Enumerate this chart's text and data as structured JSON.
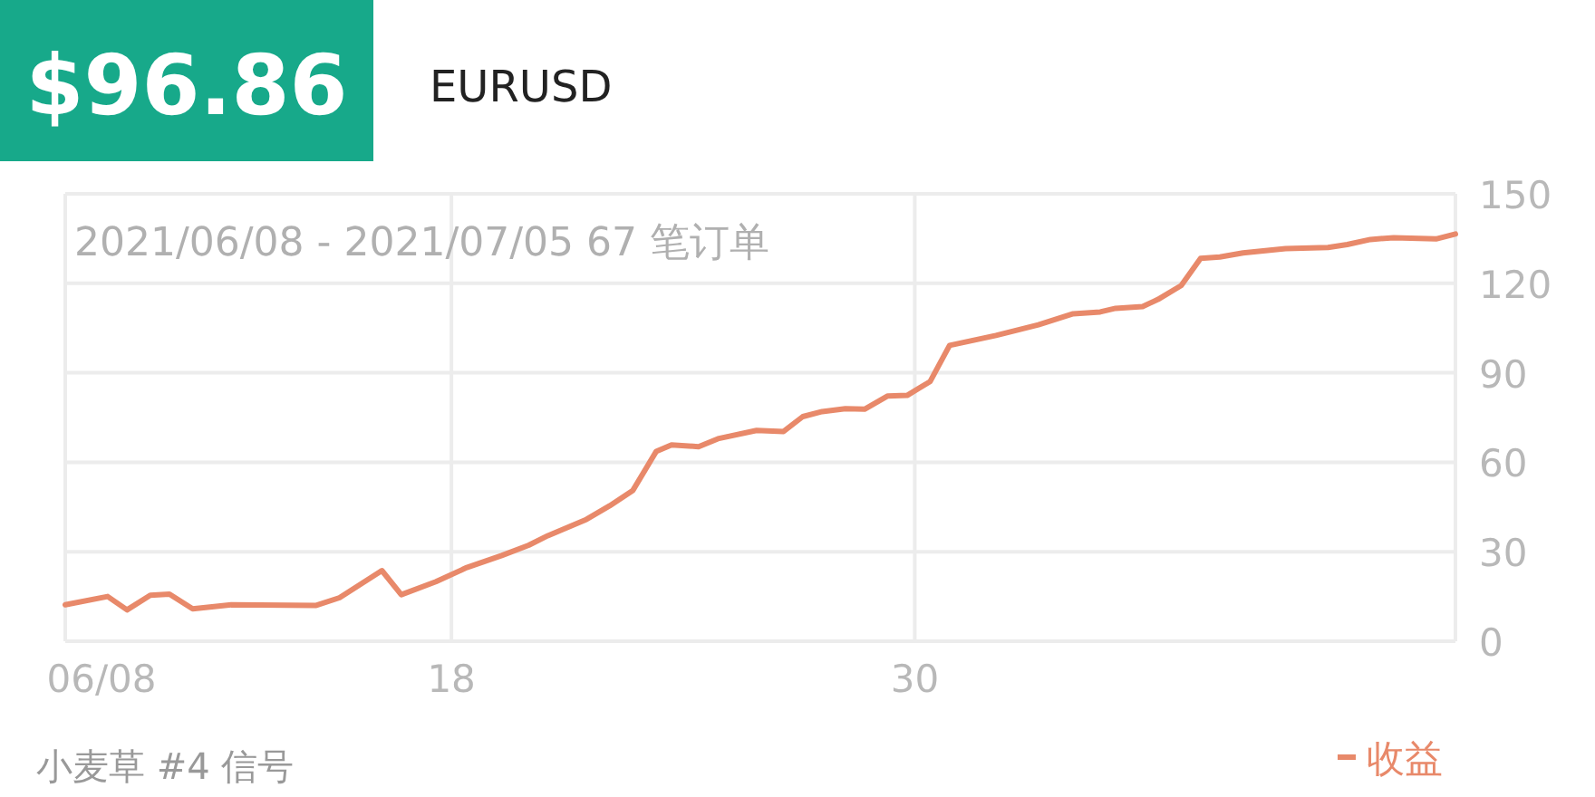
{
  "chart_data": {
    "type": "line",
    "title": "$96.86",
    "subtitle": "EURUSD",
    "annotations": [
      "2021/06/08 - 2021/07/05 67 笔订单",
      "小麦草 #4 信号"
    ],
    "x": [
      "2021-06-08T00:00",
      "2021-06-09T02:24",
      "2021-06-09T14:24",
      "2021-06-10T04:48",
      "2021-06-10T16:48",
      "2021-06-11T07:12",
      "2021-06-12T07:12",
      "2021-06-14T12:00",
      "2021-06-15T02:24",
      "2021-06-16T04:48",
      "2021-06-16T16:48",
      "2021-06-17T14:24",
      "2021-06-18T09:36",
      "2021-06-19T07:12",
      "2021-06-20T00:00",
      "2021-06-20T12:00",
      "2021-06-21T12:00",
      "2021-06-22T02:24",
      "2021-06-22T16:48",
      "2021-06-23T07:12",
      "2021-06-23T16:48",
      "2021-06-24T09:36",
      "2021-06-24T21:36",
      "2021-06-25T21:36",
      "2021-06-26T14:24",
      "2021-06-27T02:24",
      "2021-06-27T14:24",
      "2021-06-28T04:48",
      "2021-06-28T16:48",
      "2021-06-29T07:12",
      "2021-06-29T19:12",
      "2021-06-30T09:36",
      "2021-06-30T21:36",
      "2021-07-02T02:24",
      "2021-07-03T04:48",
      "2021-07-04T02:24",
      "2021-07-04T19:12",
      "2021-07-05T04:48",
      "2021-07-05T21:36",
      "2021-07-06T07:12",
      "2021-07-06T21:36",
      "2021-07-07T09:36",
      "2021-07-07T21:36",
      "2021-07-08T12:00",
      "2021-07-09T14:24",
      "2021-07-10T16:48",
      "2021-07-11T04:48",
      "2021-07-11T19:12",
      "2021-07-12T09:36",
      "2021-07-13T12:00",
      "2021-07-14T00:00"
    ],
    "series": [
      {
        "name": "收益",
        "color": "#e8896a",
        "values": [
          12.2,
          15,
          10.5,
          15.4,
          15.8,
          10.9,
          12.2,
          12,
          14.6,
          23.7,
          15.6,
          20,
          24.7,
          28.7,
          32.2,
          35.4,
          40.9,
          45.4,
          50.6,
          63.6,
          65.8,
          65.2,
          67.9,
          70.7,
          70.3,
          75.3,
          77,
          78,
          77.8,
          82.2,
          82.4,
          87.1,
          99.2,
          102.5,
          106.1,
          109.8,
          110.4,
          111.6,
          112.2,
          114.6,
          119.3,
          128.4,
          128.8,
          130.2,
          131.6,
          132,
          133,
          134.7,
          135.3,
          134.9,
          136.5
        ]
      }
    ],
    "xlim": [
      "2021-06-08",
      "2021-07-14"
    ],
    "xticks": [
      {
        "value": "2021-06-08",
        "label": "06/08"
      },
      {
        "value": "2021-06-18",
        "label": "18"
      },
      {
        "value": "2021-06-30",
        "label": "30"
      }
    ],
    "ylim": [
      0,
      150
    ],
    "yticks": [
      0,
      30,
      60,
      90,
      120,
      150
    ],
    "grid": true,
    "legend": "bottom right",
    "marker": "none",
    "line_style": "solid"
  }
}
